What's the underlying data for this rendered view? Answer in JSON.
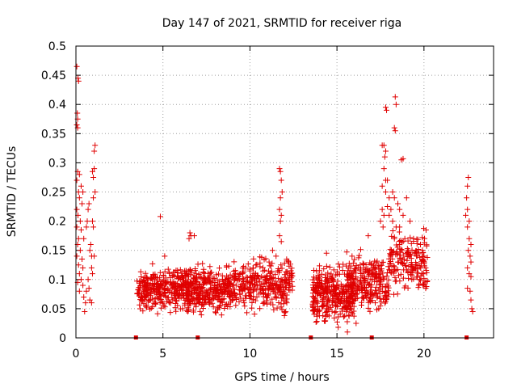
{
  "chart_data": {
    "type": "scatter",
    "title": "Day 147 of 2021, SRMTID for receiver riga",
    "xlabel": "GPS time / hours",
    "ylabel": "SRMTID / TECUs",
    "xlim": [
      0,
      24
    ],
    "ylim": [
      0,
      0.5
    ],
    "x_ticks": [
      0,
      5,
      10,
      15,
      20
    ],
    "x_tick_labels": [
      "0",
      "5",
      "10",
      "15",
      "20"
    ],
    "y_ticks": [
      0,
      0.05,
      0.1,
      0.15,
      0.2,
      0.25,
      0.3,
      0.35,
      0.4,
      0.45,
      0.5
    ],
    "y_tick_labels": [
      "0",
      "0.05",
      "0.1",
      "0.15",
      "0.2",
      "0.25",
      "0.3",
      "0.35",
      "0.4",
      "0.45",
      "0.5"
    ],
    "grid": true,
    "marker": "+",
    "color": "#e00000",
    "gap_markers_x": [
      3.45,
      7.0,
      13.5,
      17.0,
      22.45
    ],
    "series": [
      {
        "name": "SRMTID",
        "points": [
          [
            0.05,
            0.465
          ],
          [
            0.12,
            0.445
          ],
          [
            0.15,
            0.44
          ],
          [
            0.08,
            0.385
          ],
          [
            0.1,
            0.375
          ],
          [
            0.05,
            0.365
          ],
          [
            0.1,
            0.36
          ],
          [
            0.1,
            0.285
          ],
          [
            0.2,
            0.28
          ],
          [
            0.05,
            0.27
          ],
          [
            0.3,
            0.26
          ],
          [
            0.15,
            0.25
          ],
          [
            0.4,
            0.25
          ],
          [
            0.2,
            0.24
          ],
          [
            0.35,
            0.23
          ],
          [
            0.05,
            0.22
          ],
          [
            0.12,
            0.21
          ],
          [
            0.25,
            0.2
          ],
          [
            0.05,
            0.19
          ],
          [
            0.3,
            0.185
          ],
          [
            0.15,
            0.17
          ],
          [
            0.45,
            0.17
          ],
          [
            0.1,
            0.16
          ],
          [
            0.25,
            0.15
          ],
          [
            0.05,
            0.14
          ],
          [
            0.35,
            0.135
          ],
          [
            0.15,
            0.125
          ],
          [
            0.4,
            0.12
          ],
          [
            0.2,
            0.11
          ],
          [
            0.3,
            0.1
          ],
          [
            0.1,
            0.095
          ],
          [
            0.4,
            0.09
          ],
          [
            0.2,
            0.08
          ],
          [
            0.45,
            0.07
          ],
          [
            0.5,
            0.045
          ],
          [
            0.55,
            0.06
          ],
          [
            0.6,
            0.08
          ],
          [
            0.6,
            0.19
          ],
          [
            0.65,
            0.2
          ],
          [
            0.7,
            0.22
          ],
          [
            0.75,
            0.23
          ],
          [
            0.8,
            0.15
          ],
          [
            0.85,
            0.16
          ],
          [
            0.9,
            0.12
          ],
          [
            0.7,
            0.1
          ],
          [
            0.75,
            0.085
          ],
          [
            0.8,
            0.065
          ],
          [
            0.9,
            0.06
          ],
          [
            0.95,
            0.285
          ],
          [
            1.0,
            0.275
          ],
          [
            1.05,
            0.29
          ],
          [
            1.1,
            0.33
          ],
          [
            1.05,
            0.32
          ],
          [
            1.0,
            0.24
          ],
          [
            1.1,
            0.25
          ],
          [
            0.95,
            0.2
          ],
          [
            1.0,
            0.19
          ],
          [
            0.9,
            0.14
          ],
          [
            1.05,
            0.14
          ],
          [
            0.95,
            0.11
          ],
          [
            4.85,
            0.208
          ],
          [
            5.1,
            0.14
          ],
          [
            5.5,
            0.09
          ],
          [
            6.5,
            0.17
          ],
          [
            6.6,
            0.175
          ],
          [
            6.8,
            0.175
          ],
          [
            6.55,
            0.18
          ],
          [
            11.7,
            0.29
          ],
          [
            11.75,
            0.285
          ],
          [
            11.8,
            0.27
          ],
          [
            11.75,
            0.24
          ],
          [
            11.7,
            0.22
          ],
          [
            11.8,
            0.21
          ],
          [
            11.75,
            0.2
          ],
          [
            11.85,
            0.25
          ],
          [
            11.7,
            0.175
          ],
          [
            11.8,
            0.165
          ],
          [
            11.5,
            0.14
          ],
          [
            11.3,
            0.15
          ],
          [
            11.1,
            0.13
          ],
          [
            14.4,
            0.145
          ],
          [
            15.6,
            0.01
          ],
          [
            16.1,
            0.025
          ],
          [
            16.8,
            0.175
          ],
          [
            17.5,
            0.2
          ],
          [
            17.6,
            0.33
          ],
          [
            17.7,
            0.33
          ],
          [
            17.8,
            0.32
          ],
          [
            17.75,
            0.31
          ],
          [
            17.7,
            0.29
          ],
          [
            17.8,
            0.27
          ],
          [
            17.9,
            0.27
          ],
          [
            17.8,
            0.25
          ],
          [
            17.6,
            0.26
          ],
          [
            17.9,
            0.225
          ],
          [
            18.0,
            0.24
          ],
          [
            17.6,
            0.22
          ],
          [
            17.7,
            0.21
          ],
          [
            17.65,
            0.19
          ],
          [
            18.0,
            0.21
          ],
          [
            18.1,
            0.22
          ],
          [
            18.2,
            0.25
          ],
          [
            18.3,
            0.24
          ],
          [
            17.8,
            0.395
          ],
          [
            17.85,
            0.39
          ],
          [
            18.35,
            0.413
          ],
          [
            18.4,
            0.4
          ],
          [
            18.3,
            0.36
          ],
          [
            18.35,
            0.355
          ],
          [
            18.7,
            0.305
          ],
          [
            18.8,
            0.307
          ],
          [
            18.5,
            0.23
          ],
          [
            18.6,
            0.22
          ],
          [
            18.2,
            0.2
          ],
          [
            18.4,
            0.19
          ],
          [
            18.6,
            0.19
          ],
          [
            18.8,
            0.21
          ],
          [
            19.0,
            0.24
          ],
          [
            19.2,
            0.2
          ],
          [
            18.3,
            0.17
          ],
          [
            18.6,
            0.16
          ],
          [
            18.9,
            0.17
          ],
          [
            19.1,
            0.15
          ],
          [
            19.4,
            0.17
          ],
          [
            19.6,
            0.14
          ],
          [
            19.8,
            0.16
          ],
          [
            20.0,
            0.14
          ],
          [
            19.5,
            0.12
          ],
          [
            19.9,
            0.11
          ],
          [
            20.1,
            0.12
          ],
          [
            19.3,
            0.1
          ],
          [
            19.7,
            0.09
          ],
          [
            20.0,
            0.09
          ],
          [
            20.1,
            0.085
          ],
          [
            17.4,
            0.05
          ],
          [
            17.2,
            0.06
          ],
          [
            16.9,
            0.07
          ],
          [
            22.4,
            0.21
          ],
          [
            22.5,
            0.22
          ],
          [
            22.45,
            0.24
          ],
          [
            22.5,
            0.26
          ],
          [
            22.55,
            0.275
          ],
          [
            22.6,
            0.2
          ],
          [
            22.5,
            0.19
          ],
          [
            22.6,
            0.17
          ],
          [
            22.7,
            0.16
          ],
          [
            22.55,
            0.15
          ],
          [
            22.65,
            0.14
          ],
          [
            22.7,
            0.13
          ],
          [
            22.5,
            0.12
          ],
          [
            22.6,
            0.11
          ],
          [
            22.7,
            0.105
          ],
          [
            22.5,
            0.085
          ],
          [
            22.65,
            0.08
          ],
          [
            22.7,
            0.065
          ],
          [
            22.75,
            0.05
          ],
          [
            22.8,
            0.045
          ]
        ]
      }
    ],
    "clusters": [
      {
        "x": [
          3.5,
          6.5
        ],
        "y": [
          0.035,
          0.13
        ],
        "n": 330
      },
      {
        "x": [
          6.4,
          9.0
        ],
        "y": [
          0.025,
          0.14
        ],
        "n": 330
      },
      {
        "x": [
          9.0,
          12.5
        ],
        "y": [
          0.03,
          0.15
        ],
        "n": 320
      },
      {
        "x": [
          13.6,
          16.0
        ],
        "y": [
          0.01,
          0.14
        ],
        "n": 340
      },
      {
        "x": [
          15.5,
          18.0
        ],
        "y": [
          0.03,
          0.16
        ],
        "n": 240
      },
      {
        "x": [
          18.0,
          20.2
        ],
        "y": [
          0.06,
          0.2
        ],
        "n": 170
      }
    ]
  }
}
